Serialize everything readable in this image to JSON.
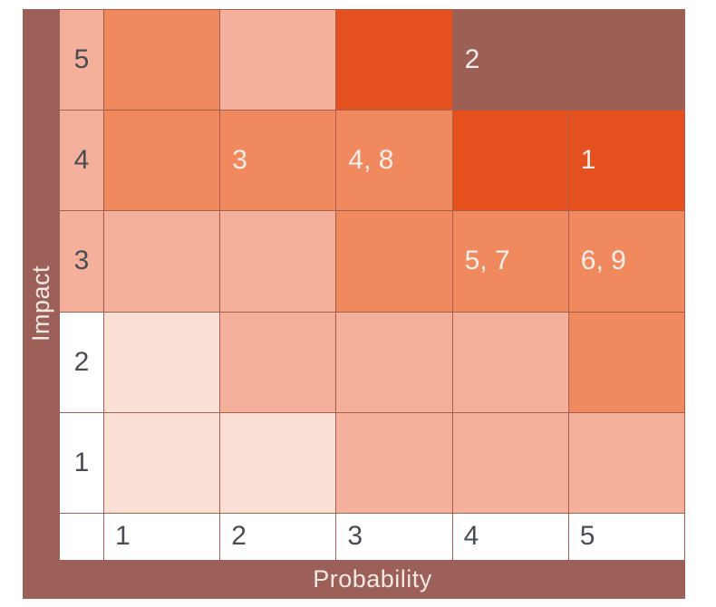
{
  "chart_data": {
    "type": "heatmap",
    "xlabel": "Probability",
    "ylabel": "Impact",
    "x_tick_labels": [
      "1",
      "2",
      "3",
      "4",
      "5"
    ],
    "y_tick_labels": [
      "5",
      "4",
      "3",
      "2",
      "1"
    ],
    "palette": {
      "maroon": "#9C5F56",
      "red": "#E4511F",
      "orange": "#F08A5E",
      "pink": "#F5B09B",
      "lightest": "#FBE0D5",
      "white": "#FFFFFF"
    },
    "rows": [
      {
        "impact": "5",
        "label_bg": "pink",
        "cells": [
          {
            "color": "orange",
            "text": ""
          },
          {
            "color": "pink",
            "text": ""
          },
          {
            "color": "red",
            "text": ""
          },
          {
            "color": "maroon",
            "text": "2",
            "span": 2
          }
        ]
      },
      {
        "impact": "4",
        "label_bg": "pink",
        "cells": [
          {
            "color": "orange",
            "text": ""
          },
          {
            "color": "orange",
            "text": "3"
          },
          {
            "color": "orange",
            "text": "4, 8"
          },
          {
            "color": "red",
            "text": ""
          },
          {
            "color": "red",
            "text": "1"
          }
        ]
      },
      {
        "impact": "3",
        "label_bg": "pink",
        "cells": [
          {
            "color": "pink",
            "text": ""
          },
          {
            "color": "pink",
            "text": ""
          },
          {
            "color": "orange",
            "text": ""
          },
          {
            "color": "orange",
            "text": "5, 7"
          },
          {
            "color": "orange",
            "text": "6, 9"
          }
        ]
      },
      {
        "impact": "2",
        "label_bg": "white",
        "cells": [
          {
            "color": "lightest",
            "text": ""
          },
          {
            "color": "pink",
            "text": ""
          },
          {
            "color": "pink",
            "text": ""
          },
          {
            "color": "pink",
            "text": ""
          },
          {
            "color": "orange",
            "text": ""
          }
        ]
      },
      {
        "impact": "1",
        "label_bg": "white",
        "cells": [
          {
            "color": "lightest",
            "text": ""
          },
          {
            "color": "lightest",
            "text": ""
          },
          {
            "color": "pink",
            "text": ""
          },
          {
            "color": "pink",
            "text": ""
          },
          {
            "color": "pink",
            "text": ""
          }
        ]
      }
    ],
    "annotations": [
      {
        "items": "2",
        "probability": 4,
        "impact": 5
      },
      {
        "items": "3",
        "probability": 2,
        "impact": 4
      },
      {
        "items": "4, 8",
        "probability": 3,
        "impact": 4
      },
      {
        "items": "1",
        "probability": 5,
        "impact": 4
      },
      {
        "items": "5, 7",
        "probability": 4,
        "impact": 3
      },
      {
        "items": "6, 9",
        "probability": 5,
        "impact": 3
      }
    ],
    "layout": {
      "grid": "on",
      "legend": "none",
      "axis_bar_color": "#9C6058",
      "gridline_color": "#A55F4E",
      "tick_text_color": "#474C54",
      "cell_text_color": "#F9EFEA"
    }
  }
}
